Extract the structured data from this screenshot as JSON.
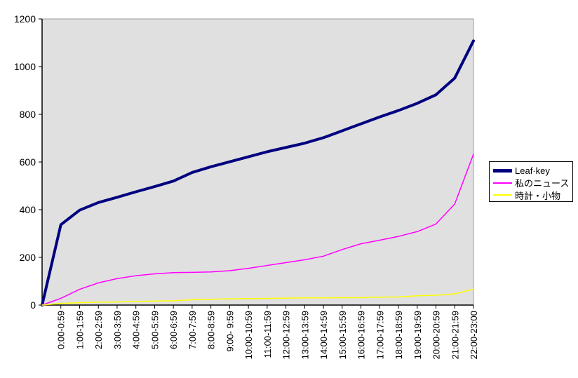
{
  "chart_data": {
    "type": "line",
    "title": "",
    "xlabel": "",
    "ylabel": "",
    "grid": false,
    "legend_position": "right-middle",
    "plot_bg": "#e0e0e0",
    "plot_border": "#9c9c9c",
    "axis_color": "#000000",
    "ylim": [
      0,
      1200
    ],
    "yticks": [
      0,
      200,
      400,
      600,
      800,
      1000,
      1200
    ],
    "categories": [
      "",
      "0:00-0:59",
      "1:00-1:59",
      "2:00-2:59",
      "3:00-3:59",
      "4:00-4:59",
      "5:00-5:59",
      "6:00-6:59",
      "7:00-7:59",
      "8:00-8:59",
      "9:00- 9:59",
      "10:00-10:59",
      "11:00-11:59",
      "12:00-12:59",
      "13:00-13:59",
      "14:00-14:59",
      "15:00-15:59",
      "16:00-16:59",
      "17:00-17:59",
      "18:00-18:59",
      "19:00-19:59",
      "20:00-20:59",
      "21:00-21:59",
      "22:00-23:00"
    ],
    "series": [
      {
        "name": "Leaf·key",
        "color": "#000080",
        "line_width": 4,
        "values": [
          0,
          337,
          398,
          430,
          452,
          475,
          497,
          520,
          556,
          580,
          601,
          622,
          643,
          661,
          679,
          702,
          731,
          760,
          789,
          816,
          846,
          882,
          952,
          1108
        ]
      },
      {
        "name": "私のニュース",
        "color": "#ff00ff",
        "line_width": 1.5,
        "values": [
          0,
          28,
          66,
          93,
          111,
          123,
          131,
          136,
          137,
          139,
          144,
          154,
          166,
          178,
          190,
          205,
          233,
          257,
          272,
          288,
          308,
          340,
          424,
          633
        ]
      },
      {
        "name": "時計・小物",
        "color": "#ffff00",
        "line_width": 1.5,
        "values": [
          0,
          7,
          10,
          12,
          13,
          15,
          17,
          18,
          22,
          24,
          26,
          27,
          28,
          29,
          30,
          30,
          31,
          31,
          33,
          34,
          39,
          41,
          47,
          67
        ]
      }
    ]
  }
}
